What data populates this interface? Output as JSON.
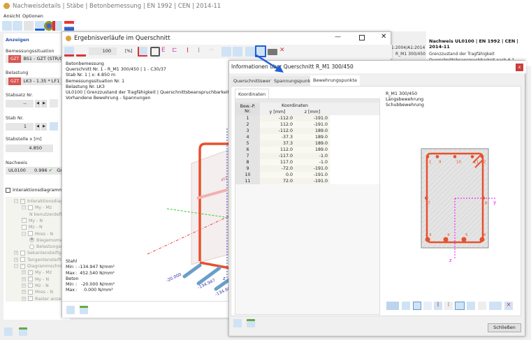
{
  "main_window": {
    "title": "Nachweisdetails | Stäbe | Betonbemessung | EN 1992 | CEN | 2014-11",
    "menu": [
      "Ansicht",
      "Optionen"
    ],
    "left_panel": {
      "header": "Anzeigen",
      "bemessungssituation_label": "Bemessungssituation",
      "bemessungssituation_badge": "GZT",
      "bemessungssituation_value": "BS1 - GZT (STR/GEO",
      "belastung_label": "Belastung",
      "belastung_badge": "GZT",
      "belastung_value": "LK3 - 1.35 * LF1 + 1.",
      "stabsatz_label": "Stabsatz Nr.",
      "stabsatz_value": "--",
      "stab_label": "Stab Nr.",
      "stab_value": "1",
      "stabstelle_label": "Stabstelle x [m]",
      "stabstelle_value": "4.850",
      "nachweis_label": "Nachweis",
      "nachweis_id": "UL0100",
      "nachweis_ratio": "0.996",
      "nachweis_text": "Gre",
      "interaktion_label": "Interaktionsdiagramm",
      "tree": [
        {
          "label": "Interaktionsdiagramm",
          "level": 0,
          "checked": true
        },
        {
          "label": "My - Mz",
          "level": 1,
          "checked": false
        },
        {
          "label": "N benutzerdefi",
          "level": 2,
          "checked": null
        },
        {
          "label": "My - N",
          "level": 1,
          "checked": true
        },
        {
          "label": "Mz - N",
          "level": 1,
          "checked": false
        },
        {
          "label": "Mres - N",
          "level": 1,
          "checked": false
        },
        {
          "label": "Biegemome",
          "level": 2,
          "radio": true
        },
        {
          "label": "Belastungse",
          "level": 2,
          "radio": false
        },
        {
          "label": "Sekantensteifigkeit",
          "level": 0,
          "checked": false
        },
        {
          "label": "Tangentensteifigkeit",
          "level": 0,
          "checked": false
        },
        {
          "label": "Diagrammschnitt in",
          "level": 0,
          "checked": true
        },
        {
          "label": "My - Mz",
          "level": 1,
          "checked": true
        },
        {
          "label": "My - N",
          "level": 1,
          "checked": true
        },
        {
          "label": "Mz - N",
          "level": 1,
          "checked": true
        },
        {
          "label": "Mres - N",
          "level": 1,
          "checked": false
        },
        {
          "label": "Raster anzeigen",
          "level": 1,
          "checked": true
        }
      ]
    },
    "right_panel": {
      "norm_fragment": "1:2004/A1:2014",
      "section_fragment": "R_M1 300/450",
      "title": "Nachweis UL0100 | EN 1992 | CEN | 2014-11",
      "desc_line1": "Grenzzustand der Tragfähigkeit",
      "desc_line2": "Querschnittsbeanspruchbarkeit nach 6.1"
    }
  },
  "results_dialog": {
    "title": "Ergebnisverläufe im Querschnitt",
    "zoom_value": "100",
    "zoom_unit": "[%]",
    "info_lines": [
      "Betonbemessung",
      "Querschnitt Nr. 1 - R_M1 300/450 | 1 - C30/37",
      "Stab Nr. 1 | x: 4.850 m",
      "Bemessungssituation Nr. 1",
      "Belastung Nr. LK3",
      "UL0100 | Grenzzustand der Tragfähigkeit | Querschnittsbeanspruchbarkeit nach 6.1",
      "Vorhandene Bewehrung - Spannungen"
    ],
    "graphic_labels": {
      "v1": "-20.000",
      "v2": "-134.947",
      "v3": "-134.94",
      "v4": "452",
      "axis_z": "z"
    },
    "summary": {
      "steel_label": "Stahl",
      "steel_min_label": "Min",
      "steel_min": ": -134.947 N/mm²",
      "steel_max_label": "Max",
      "steel_max": ":  452.540 N/mm²",
      "concrete_label": "Beton",
      "concrete_min_label": "Min",
      "concrete_min": ":   -20.000 N/mm²",
      "concrete_max_label": "Max",
      "concrete_max": ":     0.000 N/mm²"
    }
  },
  "info_dialog": {
    "title": "Informationen über Querschnitt R_M1 300/450",
    "tabs": [
      "Querschnittswerte",
      "Spannungspunkte",
      "Bewehrungspunkte"
    ],
    "active_tab": "Bewehrungspunkte",
    "subtab": "Koordinaten",
    "table": {
      "col_nr": "Bew.-P. Nr.",
      "group": "Koordinaten",
      "col_y": "y [mm]",
      "col_z": "z [mm]",
      "rows": [
        [
          "1",
          "-112.0",
          "-191.0"
        ],
        [
          "2",
          "112.0",
          "-191.0"
        ],
        [
          "3",
          "-112.0",
          "189.0"
        ],
        [
          "4",
          "-37.3",
          "189.0"
        ],
        [
          "5",
          "37.3",
          "189.0"
        ],
        [
          "6",
          "112.0",
          "189.0"
        ],
        [
          "7",
          "-117.0",
          "-1.0"
        ],
        [
          "8",
          "117.0",
          "-1.0"
        ],
        [
          "9",
          "-72.0",
          "-191.0"
        ],
        [
          "10",
          "0.0",
          "-191.0"
        ],
        [
          "11",
          "72.0",
          "-191.0"
        ]
      ]
    },
    "graphic_text": [
      "R_M1 300/450",
      "Längsbewehrung",
      "Schubbewehrung"
    ],
    "axis_y": "y",
    "axis_z": "z",
    "close_label": "Schließen"
  },
  "colors": {
    "accent": "#1f5fd6",
    "rebar": "#e8502e",
    "axis": "#ff00ff",
    "badge": "#d9534f"
  }
}
